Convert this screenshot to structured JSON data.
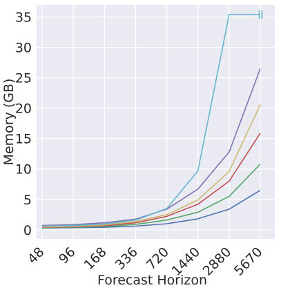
{
  "chart_data": {
    "type": "line",
    "title": "",
    "xlabel": "Forecast Horizon",
    "ylabel": "Memory (GB)",
    "categories": [
      "48",
      "96",
      "168",
      "336",
      "720",
      "1440",
      "2880",
      "5670"
    ],
    "ylim": [
      -1.5,
      37
    ],
    "yticks": [
      0,
      5,
      10,
      15,
      20,
      25,
      30,
      35
    ],
    "grid": true,
    "legend": "none",
    "background": "#eaeaf2",
    "series": [
      {
        "color": "#4c72b0",
        "values": [
          0.3,
          0.35,
          0.42,
          0.6,
          1.0,
          1.8,
          3.4,
          6.5
        ]
      },
      {
        "color": "#55a868",
        "values": [
          0.35,
          0.42,
          0.55,
          0.9,
          1.6,
          2.9,
          5.5,
          10.8
        ]
      },
      {
        "color": "#c44e52",
        "values": [
          0.4,
          0.5,
          0.68,
          1.15,
          2.2,
          4.2,
          8.0,
          15.9
        ]
      },
      {
        "color": "#ccb974",
        "values": [
          0.45,
          0.58,
          0.8,
          1.35,
          2.5,
          4.9,
          9.6,
          20.6
        ]
      },
      {
        "color": "#8172b2",
        "values": [
          0.7,
          0.85,
          1.15,
          1.75,
          3.4,
          6.7,
          12.8,
          26.5
        ]
      },
      {
        "color": "#64b5cd",
        "values": [
          0.6,
          0.7,
          0.95,
          1.6,
          3.5,
          9.7,
          35.4,
          35.4
        ],
        "end_marker": "||"
      }
    ]
  }
}
